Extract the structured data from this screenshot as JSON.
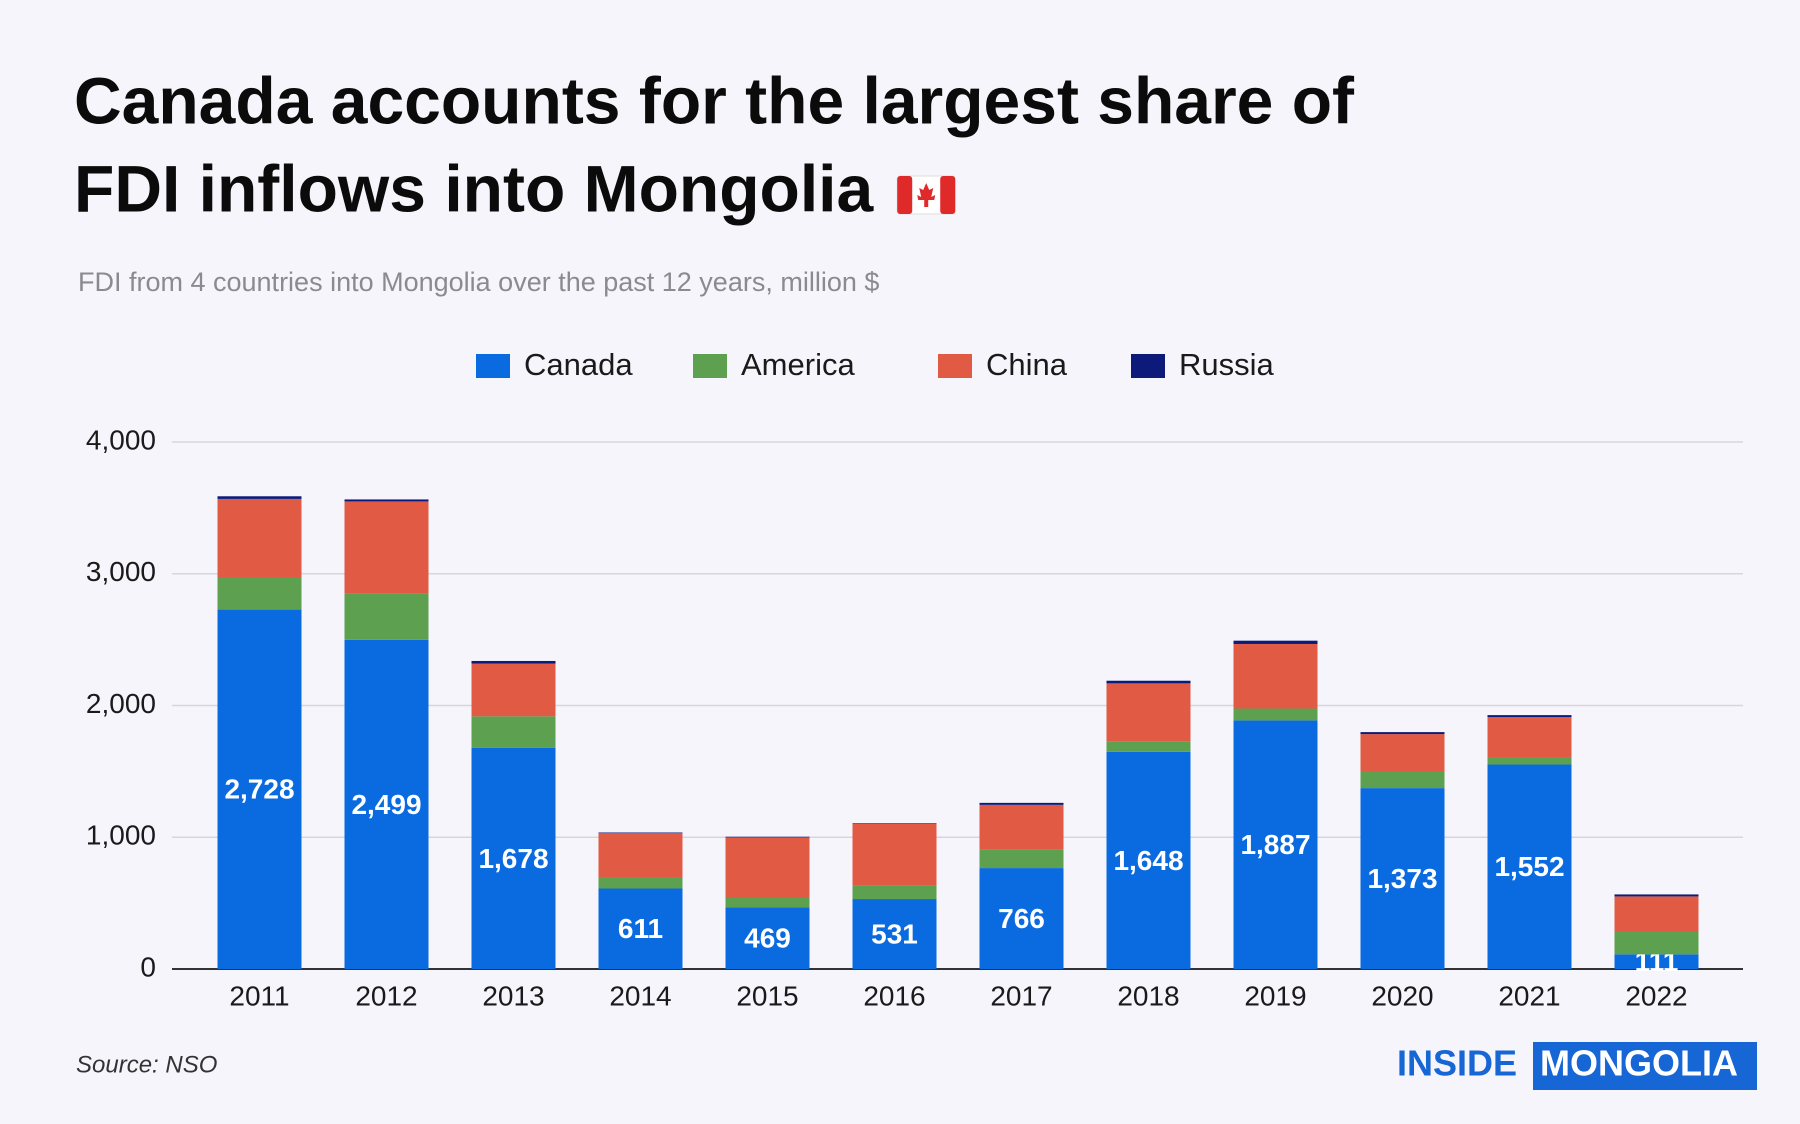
{
  "chart_data": {
    "type": "stacked-bar",
    "title": "Canada accounts for the largest share of",
    "title_line2": "FDI inflows into Mongolia",
    "subtitle": "FDI from 4 countries into Mongolia over the past 12 years, million $",
    "source": "Source: NSO",
    "logo": {
      "part1": "INSIDE",
      "part2": "MONGOLIA"
    },
    "categories": [
      "2011",
      "2012",
      "2013",
      "2014",
      "2015",
      "2016",
      "2017",
      "2018",
      "2019",
      "2020",
      "2021",
      "2022"
    ],
    "series": [
      {
        "name": "Canada",
        "color": "#0a6be0",
        "values": [
          2728,
          2499,
          1678,
          611,
          469,
          531,
          766,
          1648,
          1887,
          1373,
          1552,
          111
        ],
        "value_labels": [
          "2,728",
          "2,499",
          "1,678",
          "611",
          "469",
          "531",
          "766",
          "1,648",
          "1,887",
          "1,373",
          "1,552",
          "111"
        ]
      },
      {
        "name": "America",
        "color": "#5da04f",
        "values": [
          240,
          350,
          240,
          80,
          70,
          100,
          140,
          80,
          90,
          130,
          50,
          170
        ]
      },
      {
        "name": "China",
        "color": "#e05a44",
        "values": [
          600,
          700,
          400,
          340,
          460,
          470,
          340,
          440,
          490,
          280,
          310,
          270
        ]
      },
      {
        "name": "Russia",
        "color": "#0c1a7a",
        "values": [
          20,
          15,
          20,
          5,
          5,
          5,
          15,
          20,
          25,
          15,
          15,
          15
        ]
      }
    ],
    "ylim": [
      0,
      4000
    ],
    "yticks": [
      0,
      {
        "value": 1000,
        "label": "1,000"
      },
      {
        "value": 2000,
        "label": "2,000"
      },
      {
        "value": 3000,
        "label": "3,000"
      },
      {
        "value": 4000,
        "label": "4,000"
      }
    ],
    "grid": true
  }
}
